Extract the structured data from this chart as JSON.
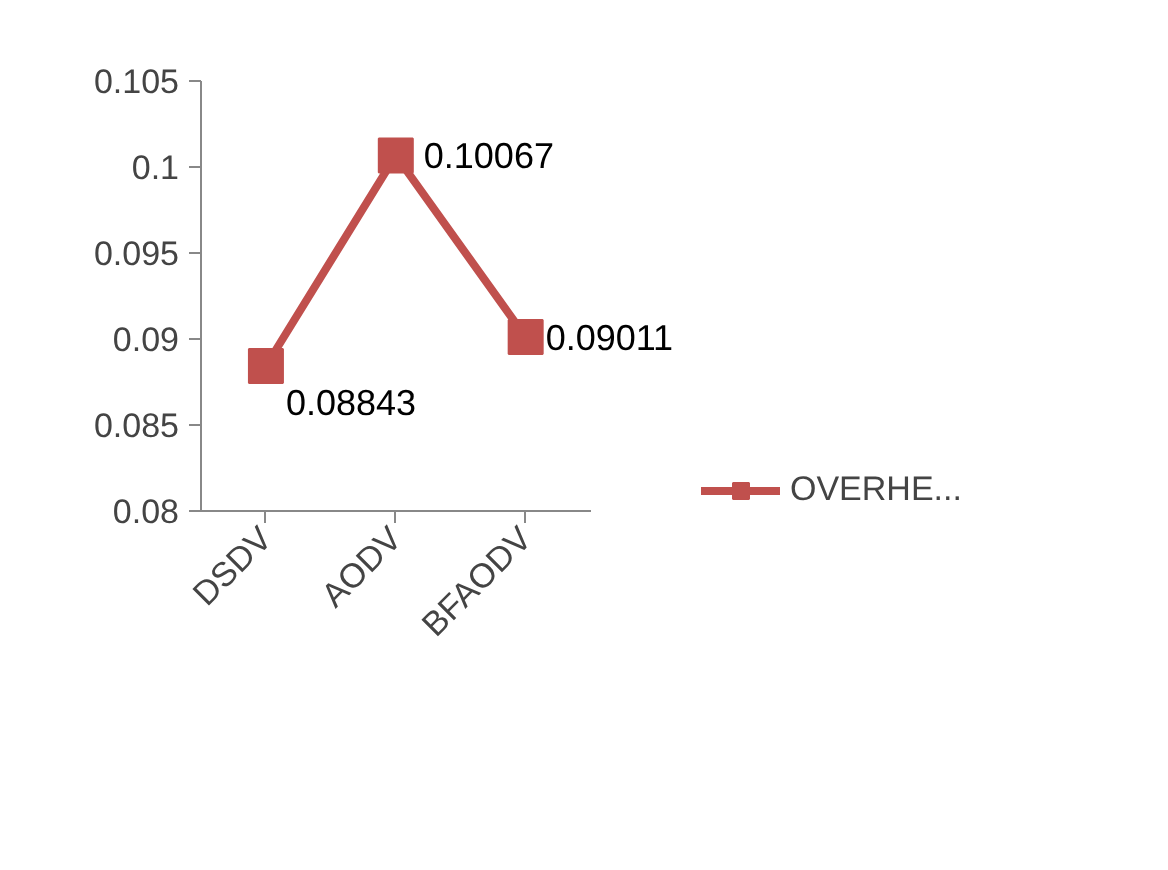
{
  "chart_data": {
    "type": "line",
    "categories": [
      "DSDV",
      "AODV",
      "BFAODV"
    ],
    "series": [
      {
        "name": "OVERHE...",
        "color": "#c0504d",
        "values": [
          0.08843,
          0.10067,
          0.09011
        ]
      }
    ],
    "ylim": [
      0.08,
      0.105
    ],
    "yticks": [
      0.08,
      0.085,
      0.09,
      0.095,
      0.1,
      0.105
    ],
    "data_labels": true,
    "marker": "square",
    "line_style": "solid",
    "grid": false,
    "legend": "bottom right"
  }
}
